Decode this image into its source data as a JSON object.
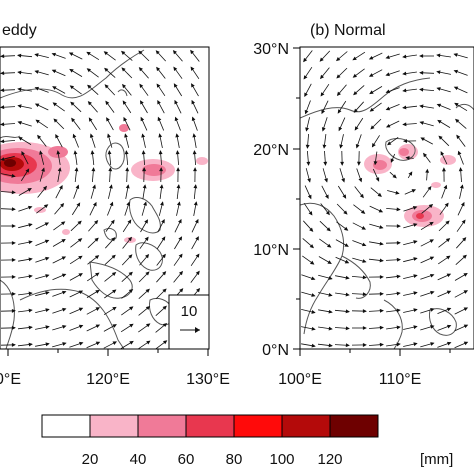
{
  "panels": [
    {
      "id": "a",
      "title": "eddy",
      "x_ticks": [
        "0°E",
        "120°E",
        "130°E"
      ],
      "y_ticks": [],
      "reference_vector": {
        "value": "10"
      }
    },
    {
      "id": "b",
      "title": "(b) Normal",
      "x_ticks": [
        "100°E",
        "110°E"
      ],
      "y_ticks": [
        "30°N",
        "20°N",
        "10°N",
        "0°N"
      ]
    }
  ],
  "colorbar": {
    "labels": [
      "20",
      "40",
      "60",
      "80",
      "100",
      "120"
    ],
    "unit": "[mm]",
    "colors": [
      "#ffffff",
      "#f9b4c8",
      "#f07a98",
      "#e8374f",
      "#ff0a0a",
      "#b40a0a",
      "#6e0000"
    ]
  },
  "colors": {
    "coast": "#555555",
    "vector": "#111111",
    "frame": "#000000"
  }
}
